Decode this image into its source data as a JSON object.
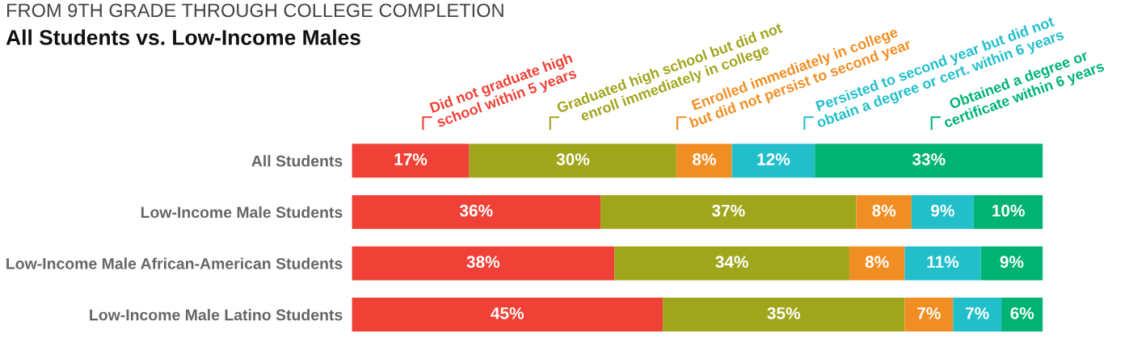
{
  "chart_data": {
    "type": "bar",
    "orientation": "horizontal",
    "stacked": true,
    "title": "FROM 9TH GRADE THROUGH COLLEGE COMPLETION",
    "subtitle": "All Students vs. Low-Income Males",
    "categories": [
      "All Students",
      "Low-Income Male Students",
      "Low-Income Male African-American Students",
      "Low-Income Male Latino Students"
    ],
    "xlim": [
      0,
      100
    ],
    "tick_labels": "y",
    "grid": false,
    "legend": "top",
    "series": [
      {
        "name": "Did not graduate high\nschool within 5 years",
        "color": "#ef4136",
        "values": [
          17,
          36,
          38,
          45
        ],
        "value_labels": [
          "17%",
          "36%",
          "38%",
          "45%"
        ]
      },
      {
        "name": "Graduated high school but did not\nenroll immediately in college",
        "color": "#a0a61c",
        "values": [
          30,
          37,
          34,
          35
        ],
        "value_labels": [
          "30%",
          "37%",
          "34%",
          "35%"
        ]
      },
      {
        "name": "Enrolled immediately in college\nbut did not persist to second year",
        "color": "#f18e23",
        "values": [
          8,
          8,
          8,
          7
        ],
        "value_labels": [
          "8%",
          "8%",
          "8%",
          "7%"
        ]
      },
      {
        "name": "Persisted to second year but did not\nobtain a degree or cert. within 6 years",
        "color": "#22bfcb",
        "values": [
          12,
          9,
          11,
          7
        ],
        "value_labels": [
          "12%",
          "9%",
          "11%",
          "7%"
        ]
      },
      {
        "name": "Obtained a degree or\ncertificate within 6 years",
        "color": "#00b373",
        "values": [
          33,
          10,
          9,
          6
        ],
        "value_labels": [
          "33%",
          "10%",
          "9%",
          "6%"
        ]
      }
    ]
  }
}
